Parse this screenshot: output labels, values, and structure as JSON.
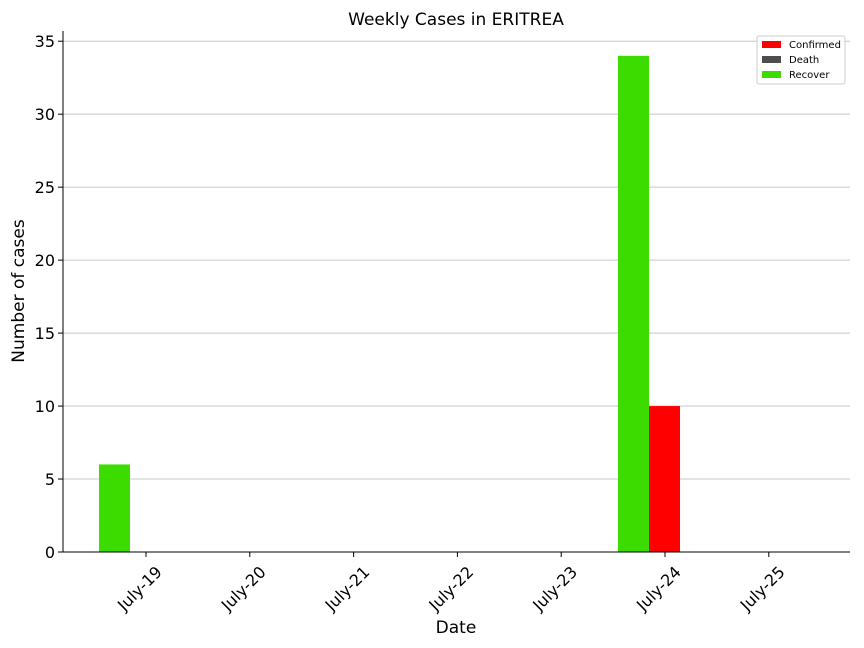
{
  "chart_data": {
    "type": "bar",
    "title": "Weekly Cases in ERITREA",
    "xlabel": "Date",
    "ylabel": "Number of cases",
    "categories": [
      "July-19",
      "July-20",
      "July-21",
      "July-22",
      "July-23",
      "July-24",
      "July-25"
    ],
    "series": [
      {
        "name": "Confirmed",
        "color": "#ff0000",
        "values": [
          0,
          0,
          0,
          0,
          0,
          10,
          0
        ]
      },
      {
        "name": "Death",
        "color": "#4d4d4d",
        "values": [
          0,
          0,
          0,
          0,
          0,
          0,
          0
        ]
      },
      {
        "name": "Recover",
        "color": "#3ddc00",
        "values": [
          6,
          0,
          0,
          0,
          0,
          34,
          0
        ]
      }
    ],
    "yticks": [
      0,
      5,
      10,
      15,
      20,
      25,
      30,
      35
    ],
    "ylim": [
      0,
      35.7
    ],
    "grid": "horizontal",
    "legend_position": "top-right"
  }
}
